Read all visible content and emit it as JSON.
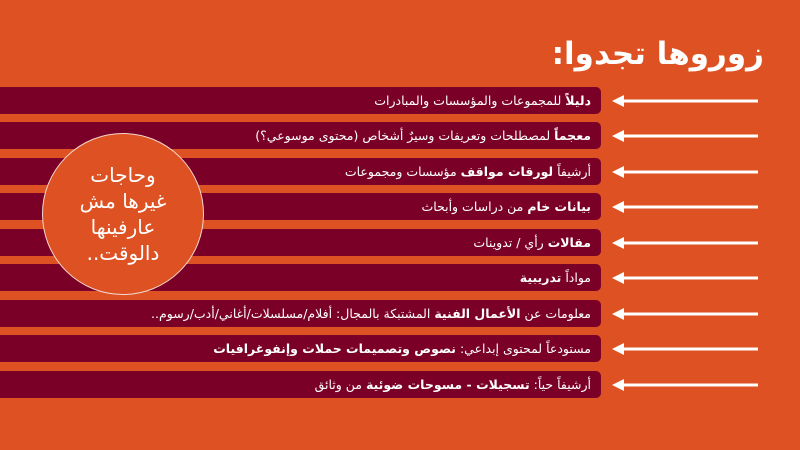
{
  "colors": {
    "background": "#DD5122",
    "bar": "#7A0028",
    "text": "#FFFFFF",
    "arrow": "#FFFFFF"
  },
  "title": "زوروها تجدوا:",
  "items": [
    {
      "bold": "دليلاً",
      "rest": " للمجموعات والمؤسسات والمبادرات",
      "bold2": "",
      "rest2": ""
    },
    {
      "bold": "معجماً",
      "rest": " لمصطلحات وتعريفات وسيرٌ أشخاص (محتوى موسوعي؟)",
      "bold2": "",
      "rest2": ""
    },
    {
      "bold": "",
      "rest": "أرشيفاً ",
      "bold2": "لورقات مواقف",
      "rest2": " مؤسسات ومجموعات"
    },
    {
      "bold": "بيانات خام",
      "rest": " من دراسات وأبحاث",
      "bold2": "",
      "rest2": ""
    },
    {
      "bold": "مقالات",
      "rest": " رأي / تدوينات",
      "bold2": "",
      "rest2": ""
    },
    {
      "bold": "",
      "rest": "مواداً ",
      "bold2": "تدريبية",
      "rest2": ""
    },
    {
      "bold": "",
      "rest": "معلومات عن ",
      "bold2": "الأعمال الفنية",
      "rest2": " المشتبكة بالمجال: أفلام/مسلسلات/أغاني/أدب/رسوم.."
    },
    {
      "bold": "",
      "rest": "مستودعاً لمحتوى إبداعي: ",
      "bold2": "نصوص وتصميمات حملات وإنفوغرافيات",
      "rest2": ""
    },
    {
      "bold": "",
      "rest": "أرشيفاً حياً: ",
      "bold2": "تسجيلات - مسوحات ضوئية",
      "rest2": " من وثائق"
    }
  ],
  "circle": {
    "lines": [
      "وحاجات",
      "غيرها مش",
      "عارفينها",
      "دالوقت.."
    ]
  },
  "icons": {
    "arrow": "arrow-left-icon"
  }
}
